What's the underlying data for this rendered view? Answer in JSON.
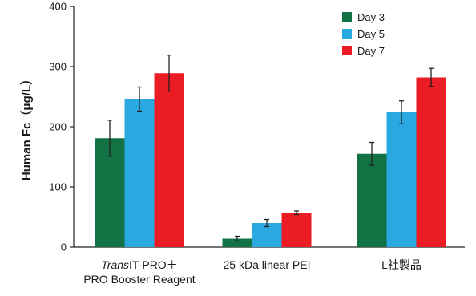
{
  "chart_data": {
    "type": "bar",
    "ylabel": "Human Fc（μg/L）",
    "ylim": [
      0,
      400
    ],
    "yticks": [
      "0",
      "100",
      "200",
      "300",
      "400"
    ],
    "grid": false,
    "legend_position": "top-right",
    "categories": [
      {
        "lines": [
          {
            "italic": "Trans",
            "rest": "IT-PRO＋"
          },
          {
            "italic": "",
            "rest": "PRO Booster Reagent"
          }
        ]
      },
      {
        "lines": [
          {
            "italic": "",
            "rest": "25 kDa linear PEI"
          }
        ]
      },
      {
        "lines": [
          {
            "italic": "",
            "rest": "L社製品"
          }
        ]
      }
    ],
    "series": [
      {
        "name": "Day 3",
        "color": "#127244",
        "values": [
          181,
          14,
          155
        ],
        "errors": [
          30,
          4,
          19
        ]
      },
      {
        "name": "Day 5",
        "color": "#2aa8e0",
        "values": [
          246,
          40,
          224
        ],
        "errors": [
          20,
          6,
          19
        ]
      },
      {
        "name": "Day 7",
        "color": "#ec1c24",
        "values": [
          289,
          57,
          282
        ],
        "errors": [
          30,
          3,
          15
        ]
      }
    ]
  }
}
